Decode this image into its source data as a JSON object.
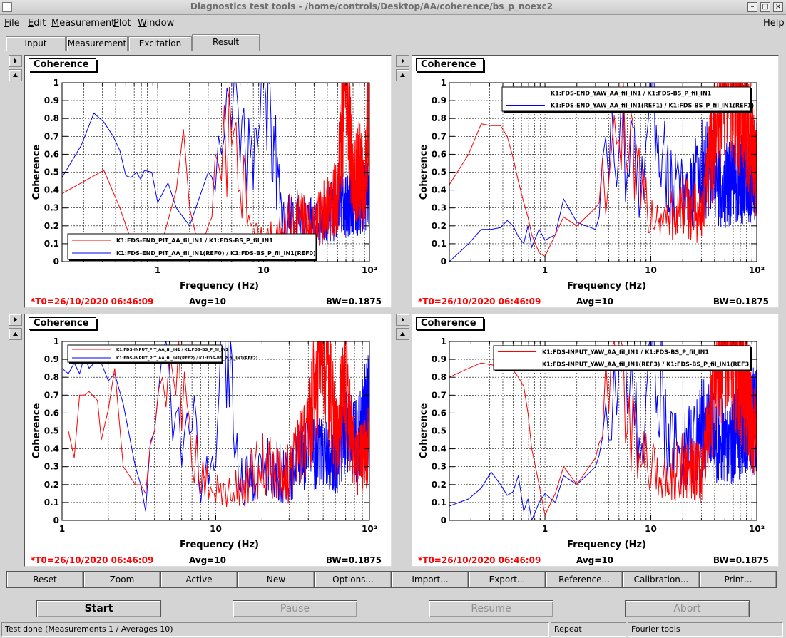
{
  "window": {
    "title": "Diagnostics test tools - /home/controls/Desktop/AA/coherence/bs_p_noexc2",
    "buttons": [
      "–",
      "□",
      "×"
    ]
  },
  "menu": [
    {
      "label": "File",
      "underline": "F"
    },
    {
      "label": "Edit",
      "underline": "E"
    },
    {
      "label": "Measurement",
      "underline": "M"
    },
    {
      "label": "Plot",
      "underline": "P"
    },
    {
      "label": "Window",
      "underline": "W"
    }
  ],
  "help_label": "Help",
  "tabs": [
    "Input",
    "Measurement",
    "Excitation",
    "Result"
  ],
  "active_tab": "Result",
  "plots": [
    {
      "title": "Coherence",
      "ylabel": "Coherence",
      "xlabel": "Frequency (Hz)",
      "xlog": true,
      "xlim": [
        0.125,
        100
      ],
      "ylim": [
        0,
        1
      ],
      "yticks": [
        "0",
        "0.1",
        "0.2",
        "0.3",
        "0.4",
        "0.5",
        "0.6",
        "0.7",
        "0.8",
        "0.9",
        "1"
      ],
      "xticks": [
        "1",
        "10",
        "10²"
      ],
      "legend": [
        {
          "label": "K1:FDS-END_PIT_AA_fil_IN1 / K1:FDS-BS_P_fil_IN1",
          "color": "#ff0000"
        },
        {
          "label": "K1:FDS-END_PIT_AA_fil_IN1(REF0) / K1:FDS-BS_P_fil_IN1(REF0)",
          "color": "#0000ff"
        }
      ],
      "t0": "*T0=26/10/2020 06:46:09",
      "avg": "Avg=10",
      "bw": "BW=0.1875"
    },
    {
      "title": "Coherence",
      "ylabel": "Coherence",
      "xlabel": "Frequency (Hz)",
      "xlog": true,
      "xlim": [
        0.125,
        100
      ],
      "ylim": [
        0,
        1
      ],
      "yticks": [
        "0",
        "0.1",
        "0.2",
        "0.3",
        "0.4",
        "0.5",
        "0.6",
        "0.7",
        "0.8",
        "0.9",
        "1"
      ],
      "xticks": [
        "1",
        "10",
        "10²"
      ],
      "legend": [
        {
          "label": "K1:FDS-END_YAW_AA_fil_IN1 / K1:FDS-BS_P_fil_IN1",
          "color": "#ff0000"
        },
        {
          "label": "K1:FDS-END_YAW_AA_fil_IN1(REF1) / K1:FDS-BS_P_fil_IN1(REF1)",
          "color": "#0000ff"
        }
      ],
      "t0": "*T0=26/10/2020 06:46:09",
      "avg": "Avg=10",
      "bw": "BW=0.1875"
    },
    {
      "title": "Coherence",
      "ylabel": "Coherence",
      "xlabel": "Frequency (Hz)",
      "xlog": true,
      "xlim": [
        1,
        100
      ],
      "ylim": [
        0,
        1
      ],
      "yticks": [
        "0",
        "0.1",
        "0.2",
        "0.3",
        "0.4",
        "0.5",
        "0.6",
        "0.7",
        "0.8",
        "0.9",
        "1"
      ],
      "xticks": [
        "1",
        "10",
        "10²"
      ],
      "legend": [
        {
          "label": "K1:FDS-INPUT_PIT_AA_fil_IN1 / K1:FDS-BS_P_fil_IN1",
          "color": "#ff0000"
        },
        {
          "label": "K1:FDS-INPUT_PIT_AA_fil_IN1(REF2) / K1:FDS-BS_P_fil_IN1(REF2)",
          "color": "#0000ff"
        }
      ],
      "t0": "*T0=26/10/2020 06:46:09",
      "avg": "Avg=10",
      "bw": "BW=0.1875"
    },
    {
      "title": "Coherence",
      "ylabel": "Coherence",
      "xlabel": "Frequency (Hz)",
      "xlog": true,
      "xlim": [
        0.125,
        100
      ],
      "ylim": [
        0,
        1
      ],
      "yticks": [
        "0",
        "0.1",
        "0.2",
        "0.3",
        "0.4",
        "0.5",
        "0.6",
        "0.7",
        "0.8",
        "0.9",
        "1"
      ],
      "xticks": [
        "1",
        "10",
        "10²"
      ],
      "legend": [
        {
          "label": "K1:FDS-INPUT_YAW_AA_fil_IN1 / K1:FDS-BS_P_fil_IN1",
          "color": "#ff0000"
        },
        {
          "label": "K1:FDS-INPUT_YAW_AA_fil_IN1(REF3) / K1:FDS-BS_P_fil_IN1(REF3)",
          "color": "#0000ff"
        }
      ],
      "t0": "*T0=26/10/2020 06:46:09",
      "avg": "Avg=10",
      "bw": "BW=0.1875"
    }
  ],
  "chart_data": [
    {
      "type": "line",
      "title": "Coherence",
      "xlabel": "Frequency (Hz)",
      "ylabel": "Coherence",
      "xscale": "log",
      "xlim": [
        0.125,
        100
      ],
      "ylim": [
        0,
        1
      ],
      "series": [
        {
          "name": "K1:FDS-END_PIT_AA_fil_IN1 / K1:FDS-BS_P_fil_IN1",
          "color": "#ff0000",
          "x": [
            0.125,
            0.31,
            0.44,
            0.56,
            0.69,
            1.0,
            1.5,
            1.75,
            2.0,
            2.5,
            3.0,
            4.0,
            5.0,
            5.5,
            6.0,
            7.0,
            8.0,
            10.0,
            15,
            20,
            30,
            40,
            50,
            60,
            70,
            80,
            90,
            100
          ],
          "y": [
            0.38,
            0.51,
            0.3,
            0.12,
            0.05,
            0.02,
            0.4,
            0.74,
            0.3,
            0.05,
            0.2,
            0.45,
            0.65,
            0.78,
            0.4,
            0.2,
            0.1,
            0.05,
            0.1,
            0.15,
            0.1,
            0.2,
            0.25,
            1.0,
            0.3,
            0.4,
            0.25,
            0.87
          ]
        },
        {
          "name": "K1:FDS-END_PIT_AA_fil_IN1(REF0) / K1:FDS-BS_P_fil_IN1(REF0)",
          "color": "#0000ff",
          "x": [
            0.125,
            0.19,
            0.25,
            0.31,
            0.38,
            0.44,
            0.5,
            0.56,
            0.63,
            0.69,
            0.75,
            0.88,
            1.0,
            1.25,
            1.5,
            2.0,
            3.0,
            4.0,
            5.0,
            6.0,
            8.0,
            10.0,
            15,
            20,
            30,
            50,
            100
          ],
          "y": [
            0.47,
            0.65,
            0.83,
            0.78,
            0.7,
            0.62,
            0.48,
            0.47,
            0.5,
            0.46,
            0.51,
            0.5,
            0.33,
            0.44,
            0.3,
            0.2,
            0.5,
            0.6,
            0.75,
            0.55,
            0.4,
            1.0,
            0.1,
            0.15,
            0.1,
            0.2,
            0.25
          ]
        }
      ]
    },
    {
      "type": "line",
      "title": "Coherence",
      "xlabel": "Frequency (Hz)",
      "ylabel": "Coherence",
      "xscale": "log",
      "xlim": [
        0.125,
        100
      ],
      "ylim": [
        0,
        1
      ],
      "series": [
        {
          "name": "K1:FDS-END_YAW_AA_fil_IN1 / K1:FDS-BS_P_fil_IN1",
          "color": "#ff0000",
          "x": [
            0.125,
            0.19,
            0.25,
            0.31,
            0.38,
            0.44,
            0.5,
            0.56,
            0.63,
            0.69,
            0.75,
            0.88,
            1.0,
            1.25,
            1.5,
            2.0,
            3.0,
            4.0,
            5.0,
            6.0,
            8.0,
            10.0,
            15,
            20,
            30,
            50,
            100
          ],
          "y": [
            0.43,
            0.6,
            0.77,
            0.76,
            0.76,
            0.7,
            0.58,
            0.45,
            0.33,
            0.25,
            0.15,
            0.05,
            0.03,
            0.15,
            0.25,
            0.2,
            0.3,
            0.45,
            0.68,
            0.5,
            0.3,
            0.2,
            0.15,
            0.2,
            0.15,
            1.0,
            0.38
          ]
        },
        {
          "name": "K1:FDS-END_YAW_AA_fil_IN1(REF1) / K1:FDS-BS_P_fil_IN1(REF1)",
          "color": "#0000ff",
          "x": [
            0.125,
            0.19,
            0.25,
            0.31,
            0.38,
            0.44,
            0.5,
            0.56,
            0.63,
            0.69,
            0.75,
            0.88,
            1.0,
            1.25,
            1.5,
            2.0,
            3.0,
            4.0,
            5.0,
            6.0,
            8.0,
            10.0,
            15,
            20,
            30,
            50,
            100
          ],
          "y": [
            0.0,
            0.1,
            0.18,
            0.18,
            0.19,
            0.23,
            0.2,
            0.14,
            0.1,
            0.2,
            0.08,
            0.18,
            0.12,
            0.15,
            0.35,
            0.22,
            0.18,
            0.45,
            0.62,
            0.5,
            0.35,
            0.9,
            0.3,
            0.25,
            0.4,
            0.3,
            0.38
          ]
        }
      ]
    },
    {
      "type": "line",
      "title": "Coherence",
      "xlabel": "Frequency (Hz)",
      "ylabel": "Coherence",
      "xscale": "log",
      "xlim": [
        1,
        100
      ],
      "ylim": [
        0,
        1
      ],
      "series": [
        {
          "name": "K1:FDS-INPUT_PIT_AA_fil_IN1 / K1:FDS-BS_P_fil_IN1",
          "color": "#ff0000",
          "x": [
            1.0,
            1.1,
            1.2,
            1.3,
            1.4,
            1.5,
            1.7,
            1.8,
            2.0,
            2.2,
            2.5,
            3.0,
            3.5,
            4.0,
            4.5,
            5.0,
            5.5,
            6.0,
            7.0,
            8.0,
            10.0,
            15,
            20,
            30,
            40,
            50,
            60,
            70,
            80,
            100
          ],
          "y": [
            0.5,
            0.5,
            0.35,
            0.7,
            0.7,
            0.72,
            0.67,
            0.45,
            0.62,
            0.85,
            0.3,
            0.2,
            0.15,
            0.5,
            0.8,
            0.95,
            0.7,
            0.5,
            0.3,
            0.15,
            0.1,
            0.1,
            0.2,
            0.15,
            0.4,
            1.0,
            0.3,
            0.65,
            0.2,
            0.3
          ]
        },
        {
          "name": "K1:FDS-INPUT_PIT_AA_fil_IN1(REF2) / K1:FDS-BS_P_fil_IN1(REF2)",
          "color": "#0000ff",
          "x": [
            1.0,
            1.1,
            1.2,
            1.3,
            1.4,
            1.5,
            1.7,
            1.8,
            2.0,
            2.2,
            2.5,
            3.0,
            3.5,
            4.0,
            4.5,
            5.0,
            5.5,
            6.0,
            7.0,
            8.0,
            10.0,
            11.0,
            15,
            20,
            30,
            40,
            50,
            60,
            70,
            80,
            100
          ],
          "y": [
            0.85,
            0.82,
            0.88,
            0.82,
            0.92,
            0.85,
            0.9,
            0.88,
            0.78,
            0.82,
            0.65,
            0.3,
            0.05,
            0.5,
            0.95,
            0.85,
            0.6,
            0.3,
            0.5,
            0.1,
            0.3,
            1.0,
            0.1,
            0.2,
            0.15,
            0.3,
            0.25,
            0.2,
            0.4,
            0.3,
            0.5
          ]
        }
      ]
    },
    {
      "type": "line",
      "title": "Coherence",
      "xlabel": "Frequency (Hz)",
      "ylabel": "Coherence",
      "xscale": "log",
      "xlim": [
        0.125,
        100
      ],
      "ylim": [
        0,
        1
      ],
      "series": [
        {
          "name": "K1:FDS-INPUT_YAW_AA_fil_IN1 / K1:FDS-BS_P_fil_IN1",
          "color": "#ff0000",
          "x": [
            0.125,
            0.19,
            0.25,
            0.31,
            0.38,
            0.44,
            0.5,
            0.56,
            0.63,
            0.69,
            0.75,
            0.88,
            1.0,
            1.25,
            1.5,
            2.0,
            3.0,
            4.0,
            5.0,
            6.0,
            8.0,
            10.0,
            15,
            20,
            30,
            50,
            100
          ],
          "y": [
            0.8,
            0.85,
            0.88,
            0.87,
            0.86,
            0.86,
            0.84,
            0.8,
            0.75,
            0.6,
            0.4,
            0.2,
            0.03,
            0.15,
            0.3,
            0.2,
            0.35,
            0.6,
            0.88,
            0.5,
            0.3,
            0.2,
            0.15,
            0.2,
            0.15,
            1.0,
            0.3
          ]
        },
        {
          "name": "K1:FDS-INPUT_YAW_AA_fil_IN1(REF3) / K1:FDS-BS_P_fil_IN1(REF3)",
          "color": "#0000ff",
          "x": [
            0.125,
            0.19,
            0.25,
            0.31,
            0.38,
            0.44,
            0.5,
            0.56,
            0.63,
            0.69,
            0.75,
            0.88,
            1.0,
            1.25,
            1.5,
            2.0,
            3.0,
            4.0,
            5.0,
            6.0,
            8.0,
            10.0,
            15,
            20,
            30,
            50,
            100
          ],
          "y": [
            0.08,
            0.12,
            0.18,
            0.27,
            0.2,
            0.14,
            0.16,
            0.25,
            0.05,
            0.12,
            0.0,
            0.1,
            0.15,
            0.1,
            0.25,
            0.2,
            0.3,
            0.45,
            0.85,
            0.6,
            0.35,
            0.9,
            0.3,
            0.25,
            0.4,
            0.3,
            0.45
          ]
        }
      ]
    }
  ],
  "bottom_buttons": [
    "Reset",
    "Zoom",
    "Active",
    "New",
    "Options...",
    "Import...",
    "Export...",
    "Reference...",
    "Calibration...",
    "Print..."
  ],
  "control_buttons": [
    {
      "label": "Start",
      "enabled": true
    },
    {
      "label": "Pause",
      "enabled": false
    },
    {
      "label": "Resume",
      "enabled": false
    },
    {
      "label": "Abort",
      "enabled": false
    }
  ],
  "status": {
    "message": "Test done (Measurements 1 / Averages 10)",
    "mode": "Repeat",
    "tool": "Fourier tools"
  }
}
